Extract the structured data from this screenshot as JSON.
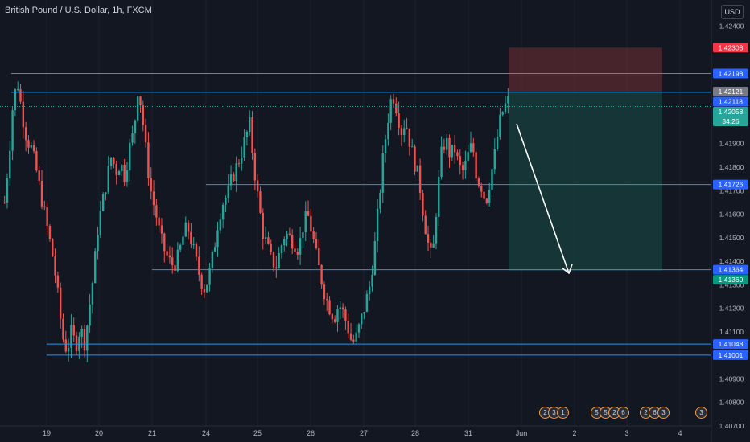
{
  "header": {
    "title": "British Pound / U.S. Dollar, 1h, FXCM"
  },
  "currency": {
    "label": "USD"
  },
  "colors": {
    "background": "#131722",
    "up": "#26a69a",
    "down": "#ef5350",
    "level_line": "#2196f3",
    "stop_zone": "#5a2a30",
    "target_zone": "#173d3c",
    "arrow": "#ffffff"
  },
  "events": [
    {
      "id": "ev1",
      "counts": [
        "2",
        "3",
        "1"
      ]
    },
    {
      "id": "ev2",
      "counts": [
        "5",
        "5",
        "2",
        "6"
      ]
    },
    {
      "id": "ev3",
      "counts": [
        "2",
        "6",
        "3"
      ]
    },
    {
      "id": "ev4",
      "counts": [
        "3"
      ]
    }
  ],
  "chart_data": {
    "type": "candlestick",
    "title": "British Pound / U.S. Dollar, 1h, FXCM",
    "ylim": [
      1.407,
      1.4249
    ],
    "y_ticks": [
      "1.42400",
      "1.42200",
      "1.42000",
      "1.41900",
      "1.41800",
      "1.41700",
      "1.41600",
      "1.41500",
      "1.41400",
      "1.41300",
      "1.41200",
      "1.41100",
      "1.41000",
      "1.40900",
      "1.40800",
      "1.40700"
    ],
    "x_ticks": [
      "19",
      "20",
      "21",
      "24",
      "25",
      "26",
      "27",
      "28",
      "31",
      "Jun",
      "2",
      "3",
      "4"
    ],
    "price_labels": [
      {
        "value": "1.42308",
        "kind": "stop"
      },
      {
        "value": "1.42198",
        "kind": "level"
      },
      {
        "value": "1.42121",
        "kind": "entry"
      },
      {
        "value": "1.42118",
        "kind": "level"
      },
      {
        "value": "1.42058",
        "kind": "current"
      },
      {
        "value": "1.41726",
        "kind": "level"
      },
      {
        "value": "1.41364",
        "kind": "level"
      },
      {
        "value": "1.41360",
        "kind": "target"
      },
      {
        "value": "1.41048",
        "kind": "level"
      },
      {
        "value": "1.41001",
        "kind": "level"
      }
    ],
    "countdown": "34:26",
    "horizontal_levels": [
      {
        "price": 1.42198,
        "x_from": "18",
        "x_to": "end"
      },
      {
        "price": 1.42118,
        "x_from": "18",
        "x_to": "end"
      },
      {
        "price": 1.41726,
        "x_from": "24",
        "x_to": "end"
      },
      {
        "price": 1.41364,
        "x_from": "21",
        "x_to": "end"
      },
      {
        "price": 1.41048,
        "x_from": "19",
        "x_to": "end"
      },
      {
        "price": 1.41001,
        "x_from": "19",
        "x_to": "end"
      }
    ],
    "position": {
      "type": "short",
      "entry": 1.42121,
      "stop": 1.42308,
      "target": 1.4136
    },
    "path": [
      1.4165,
      1.4185,
      1.421,
      1.4215,
      1.4202,
      1.4192,
      1.4188,
      1.418,
      1.417,
      1.416,
      1.415,
      1.414,
      1.4125,
      1.4108,
      1.4102,
      1.411,
      1.4104,
      1.4112,
      1.4105,
      1.412,
      1.4135,
      1.4155,
      1.4165,
      1.4175,
      1.4185,
      1.4178,
      1.4182,
      1.4176,
      1.4188,
      1.4195,
      1.4215,
      1.42,
      1.4182,
      1.4168,
      1.416,
      1.415,
      1.4144,
      1.414,
      1.4138,
      1.4142,
      1.415,
      1.4155,
      1.4148,
      1.414,
      1.4132,
      1.4128,
      1.4135,
      1.4145,
      1.4158,
      1.4165,
      1.4168,
      1.4175,
      1.418,
      1.4185,
      1.4192,
      1.4198,
      1.418,
      1.4165,
      1.4152,
      1.4146,
      1.414,
      1.4138,
      1.4146,
      1.4152,
      1.415,
      1.4148,
      1.4145,
      1.4155,
      1.416,
      1.4152,
      1.4142,
      1.4133,
      1.4125,
      1.412,
      1.4116,
      1.4122,
      1.4118,
      1.4112,
      1.4105,
      1.4108,
      1.4115,
      1.4122,
      1.413,
      1.4145,
      1.4165,
      1.4185,
      1.42,
      1.4212,
      1.4205,
      1.4195,
      1.42,
      1.419,
      1.4182,
      1.4175,
      1.416,
      1.4148,
      1.414,
      1.4165,
      1.4185,
      1.4192,
      1.4185,
      1.4188,
      1.418,
      1.4178,
      1.4185,
      1.419,
      1.4175,
      1.4172,
      1.4165,
      1.4175,
      1.4185,
      1.4198,
      1.4205,
      1.4208
    ]
  }
}
